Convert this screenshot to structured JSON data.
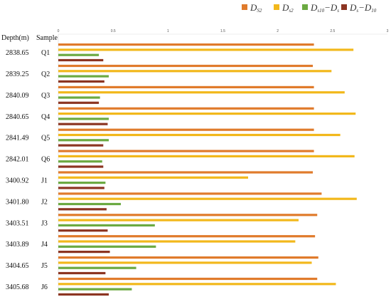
{
  "chart_data": {
    "type": "bar",
    "orientation": "horizontal",
    "title": "",
    "column_headers": {
      "depth": "Depth(m)",
      "sample": "Sample"
    },
    "categories": [
      "Q1",
      "Q2",
      "Q3",
      "Q4",
      "Q5",
      "Q6",
      "J1",
      "J2",
      "J3",
      "J4",
      "J5",
      "J6"
    ],
    "depths": [
      "2838.65",
      "2839.25",
      "2840.09",
      "2840.65",
      "2841.49",
      "2842.01",
      "3400.92",
      "3401.80",
      "3403.51",
      "3403.89",
      "3404.65",
      "3405.68"
    ],
    "xlim": [
      0,
      3
    ],
    "x_ticks": [
      "0",
      "0.5",
      "1",
      "1.5",
      "2",
      "2.5",
      "3"
    ],
    "legend_position": "top",
    "grid": false,
    "series": [
      {
        "name": "D_S2",
        "legend_main": "D",
        "legend_sub": "S2",
        "color": "#E07B2C",
        "values": [
          2.33,
          2.32,
          2.33,
          2.33,
          2.33,
          2.33,
          2.32,
          2.4,
          2.36,
          2.34,
          2.37,
          2.36
        ]
      },
      {
        "name": "D_s2",
        "legend_main": "D",
        "legend_sub": "s2",
        "color": "#F2B81C",
        "values": [
          2.69,
          2.49,
          2.61,
          2.71,
          2.57,
          2.7,
          1.73,
          2.72,
          2.19,
          2.16,
          2.31,
          2.53
        ]
      },
      {
        "name": "D_s10-D_s",
        "legend_main": "D",
        "legend_sub": "s10",
        "legend_main2": "−D",
        "legend_sub2": "s",
        "color": "#6BAA42",
        "values": [
          0.37,
          0.46,
          0.38,
          0.46,
          0.46,
          0.4,
          0.43,
          0.57,
          0.88,
          0.89,
          0.71,
          0.67
        ]
      },
      {
        "name": "D_s-D_10",
        "legend_main": "D",
        "legend_sub": "s",
        "legend_main2": "−D",
        "legend_sub2": "10",
        "color": "#8C3522",
        "values": [
          0.41,
          0.42,
          0.37,
          0.45,
          0.41,
          0.41,
          0.42,
          0.44,
          0.45,
          0.47,
          0.43,
          0.46
        ]
      }
    ]
  }
}
